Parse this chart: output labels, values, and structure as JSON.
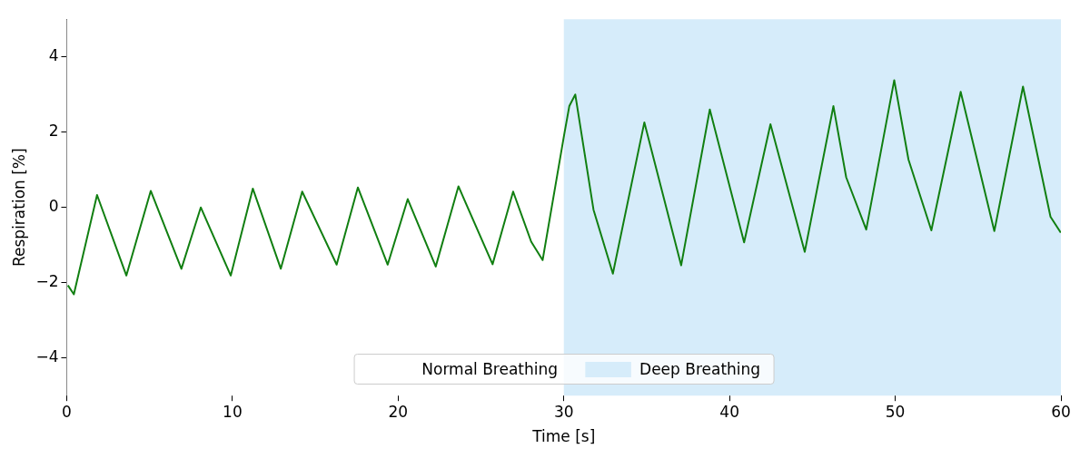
{
  "chart_data": {
    "type": "line",
    "xlabel": "Time [s]",
    "ylabel": "Respiration [%]",
    "xlim": [
      0,
      60
    ],
    "xticks": [
      0,
      10,
      20,
      30,
      40,
      50,
      60
    ],
    "ylim": [
      -5,
      5
    ],
    "yticks": [
      -4,
      -2,
      0,
      2,
      4
    ],
    "grid": false,
    "legend": "bottom",
    "marker": "none",
    "line_style": "solid",
    "bands": [
      {
        "axis": "x",
        "from": 0,
        "to": 30,
        "label": "Normal Breathing",
        "color": "#ffffff"
      },
      {
        "axis": "x",
        "from": 30,
        "to": 60,
        "label": "Deep Breathing",
        "color": "#d6ecfa"
      }
    ],
    "series": [
      {
        "color": "#117f11",
        "x": [
          0.07,
          0.43,
          1.83,
          3.6,
          5.07,
          6.92,
          8.09,
          9.9,
          11.23,
          12.92,
          14.21,
          16.29,
          17.57,
          19.37,
          20.58,
          22.27,
          23.64,
          25.7,
          26.94,
          28.03,
          28.72,
          30.02,
          30.33,
          30.69,
          31.79,
          32.96,
          34.86,
          37.08,
          38.81,
          40.88,
          42.47,
          44.54,
          46.27,
          47.04,
          48.25,
          49.94,
          50.8,
          52.18,
          53.95,
          55.98,
          57.71,
          59.37,
          59.99
        ],
        "values": [
          -2.07,
          -2.31,
          0.33,
          -1.81,
          0.44,
          -1.63,
          0.0,
          -1.81,
          0.5,
          -1.63,
          0.42,
          -1.52,
          0.53,
          -1.52,
          0.22,
          -1.57,
          0.56,
          -1.51,
          0.42,
          -0.91,
          -1.4,
          1.93,
          2.69,
          3.0,
          -0.06,
          -1.76,
          2.26,
          -1.54,
          2.6,
          -0.93,
          2.21,
          -1.18,
          2.69,
          0.8,
          -0.59,
          3.38,
          1.27,
          -0.61,
          3.07,
          -0.63,
          3.21,
          -0.25,
          -0.67
        ]
      }
    ]
  }
}
